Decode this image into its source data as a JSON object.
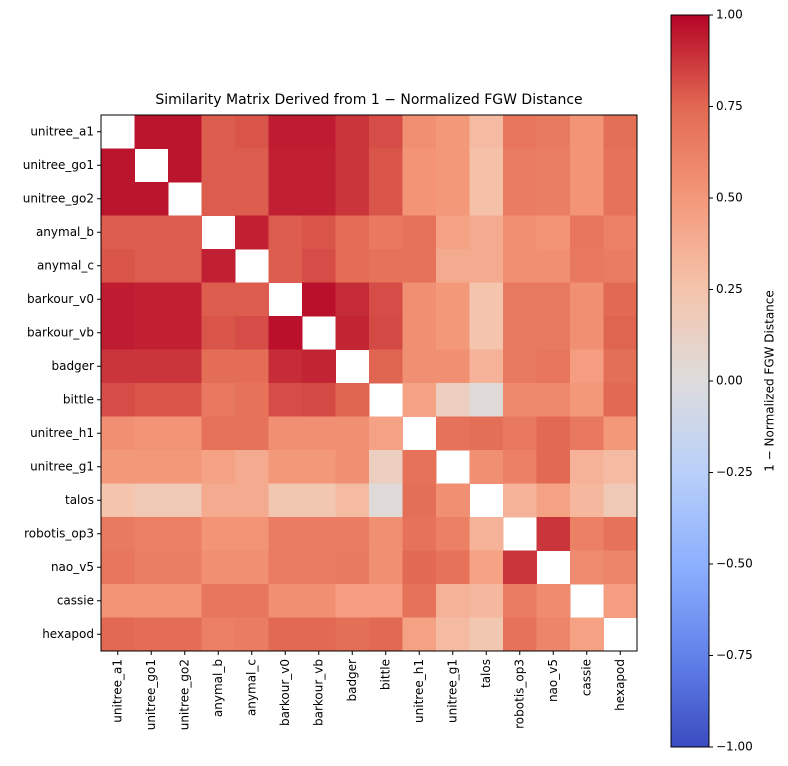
{
  "chart_data": {
    "type": "heatmap",
    "title": "Similarity Matrix Derived from 1 − Normalized FGW Distance",
    "categories": [
      "unitree_a1",
      "unitree_go1",
      "unitree_go2",
      "anymal_b",
      "anymal_c",
      "barkour_v0",
      "barkour_vb",
      "badger",
      "bittle",
      "unitree_h1",
      "unitree_g1",
      "talos",
      "robotis_op3",
      "nao_v5",
      "cassie",
      "hexapod"
    ],
    "values": [
      [
        null,
        0.96,
        0.96,
        0.78,
        0.8,
        0.94,
        0.94,
        0.88,
        0.82,
        0.55,
        0.5,
        0.3,
        0.68,
        0.66,
        0.52,
        0.72
      ],
      [
        0.96,
        null,
        0.96,
        0.78,
        0.78,
        0.93,
        0.93,
        0.88,
        0.8,
        0.52,
        0.5,
        0.27,
        0.65,
        0.64,
        0.52,
        0.7
      ],
      [
        0.96,
        0.96,
        null,
        0.78,
        0.78,
        0.93,
        0.93,
        0.88,
        0.8,
        0.52,
        0.5,
        0.27,
        0.65,
        0.64,
        0.52,
        0.7
      ],
      [
        0.78,
        0.78,
        0.78,
        null,
        0.93,
        0.78,
        0.8,
        0.73,
        0.67,
        0.7,
        0.45,
        0.4,
        0.55,
        0.52,
        0.68,
        0.62
      ],
      [
        0.8,
        0.78,
        0.78,
        0.93,
        null,
        0.78,
        0.82,
        0.73,
        0.7,
        0.7,
        0.4,
        0.4,
        0.55,
        0.55,
        0.67,
        0.65
      ],
      [
        0.94,
        0.93,
        0.93,
        0.78,
        0.78,
        null,
        0.97,
        0.9,
        0.82,
        0.55,
        0.5,
        0.25,
        0.66,
        0.66,
        0.55,
        0.75
      ],
      [
        0.94,
        0.93,
        0.93,
        0.8,
        0.82,
        0.97,
        null,
        0.92,
        0.83,
        0.55,
        0.5,
        0.25,
        0.66,
        0.66,
        0.55,
        0.76
      ],
      [
        0.88,
        0.88,
        0.88,
        0.73,
        0.73,
        0.9,
        0.92,
        null,
        0.76,
        0.55,
        0.55,
        0.35,
        0.66,
        0.68,
        0.47,
        0.72
      ],
      [
        0.82,
        0.8,
        0.8,
        0.67,
        0.7,
        0.82,
        0.83,
        0.76,
        null,
        0.45,
        0.15,
        0.02,
        0.58,
        0.58,
        0.5,
        0.75
      ],
      [
        0.55,
        0.52,
        0.52,
        0.7,
        0.7,
        0.55,
        0.55,
        0.55,
        0.45,
        null,
        0.7,
        0.72,
        0.67,
        0.75,
        0.67,
        0.5
      ],
      [
        0.5,
        0.5,
        0.5,
        0.45,
        0.4,
        0.5,
        0.5,
        0.55,
        0.15,
        0.7,
        null,
        0.55,
        0.63,
        0.75,
        0.35,
        0.3
      ],
      [
        0.25,
        0.2,
        0.2,
        0.4,
        0.4,
        0.22,
        0.22,
        0.3,
        0.02,
        0.72,
        0.55,
        null,
        0.35,
        0.45,
        0.32,
        0.2
      ],
      [
        0.66,
        0.63,
        0.63,
        0.52,
        0.52,
        0.65,
        0.65,
        0.65,
        0.55,
        0.7,
        0.63,
        0.35,
        null,
        0.88,
        0.63,
        0.7
      ],
      [
        0.68,
        0.64,
        0.64,
        0.55,
        0.55,
        0.65,
        0.65,
        0.66,
        0.55,
        0.75,
        0.7,
        0.45,
        0.88,
        null,
        0.57,
        0.6
      ],
      [
        0.52,
        0.52,
        0.52,
        0.68,
        0.68,
        0.55,
        0.55,
        0.47,
        0.47,
        0.7,
        0.35,
        0.32,
        0.65,
        0.57,
        null,
        0.47
      ],
      [
        0.75,
        0.73,
        0.73,
        0.63,
        0.65,
        0.75,
        0.75,
        0.72,
        0.75,
        0.45,
        0.3,
        0.22,
        0.7,
        0.6,
        0.45,
        null
      ]
    ],
    "colormap": "coolwarm",
    "zlim": [
      -1,
      1
    ],
    "zticks": [
      {
        "value": -1,
        "label": "−1.00"
      },
      {
        "value": -0.75,
        "label": "−0.75"
      },
      {
        "value": -0.5,
        "label": "−0.50"
      },
      {
        "value": -0.25,
        "label": "−0.25"
      },
      {
        "value": 0,
        "label": "0.00"
      },
      {
        "value": 0.25,
        "label": "0.25"
      },
      {
        "value": 0.5,
        "label": "0.50"
      },
      {
        "value": 0.75,
        "label": "0.75"
      },
      {
        "value": 1,
        "label": "1.00"
      }
    ],
    "colorbar_label": "1 − Normalized FGW Distance"
  }
}
